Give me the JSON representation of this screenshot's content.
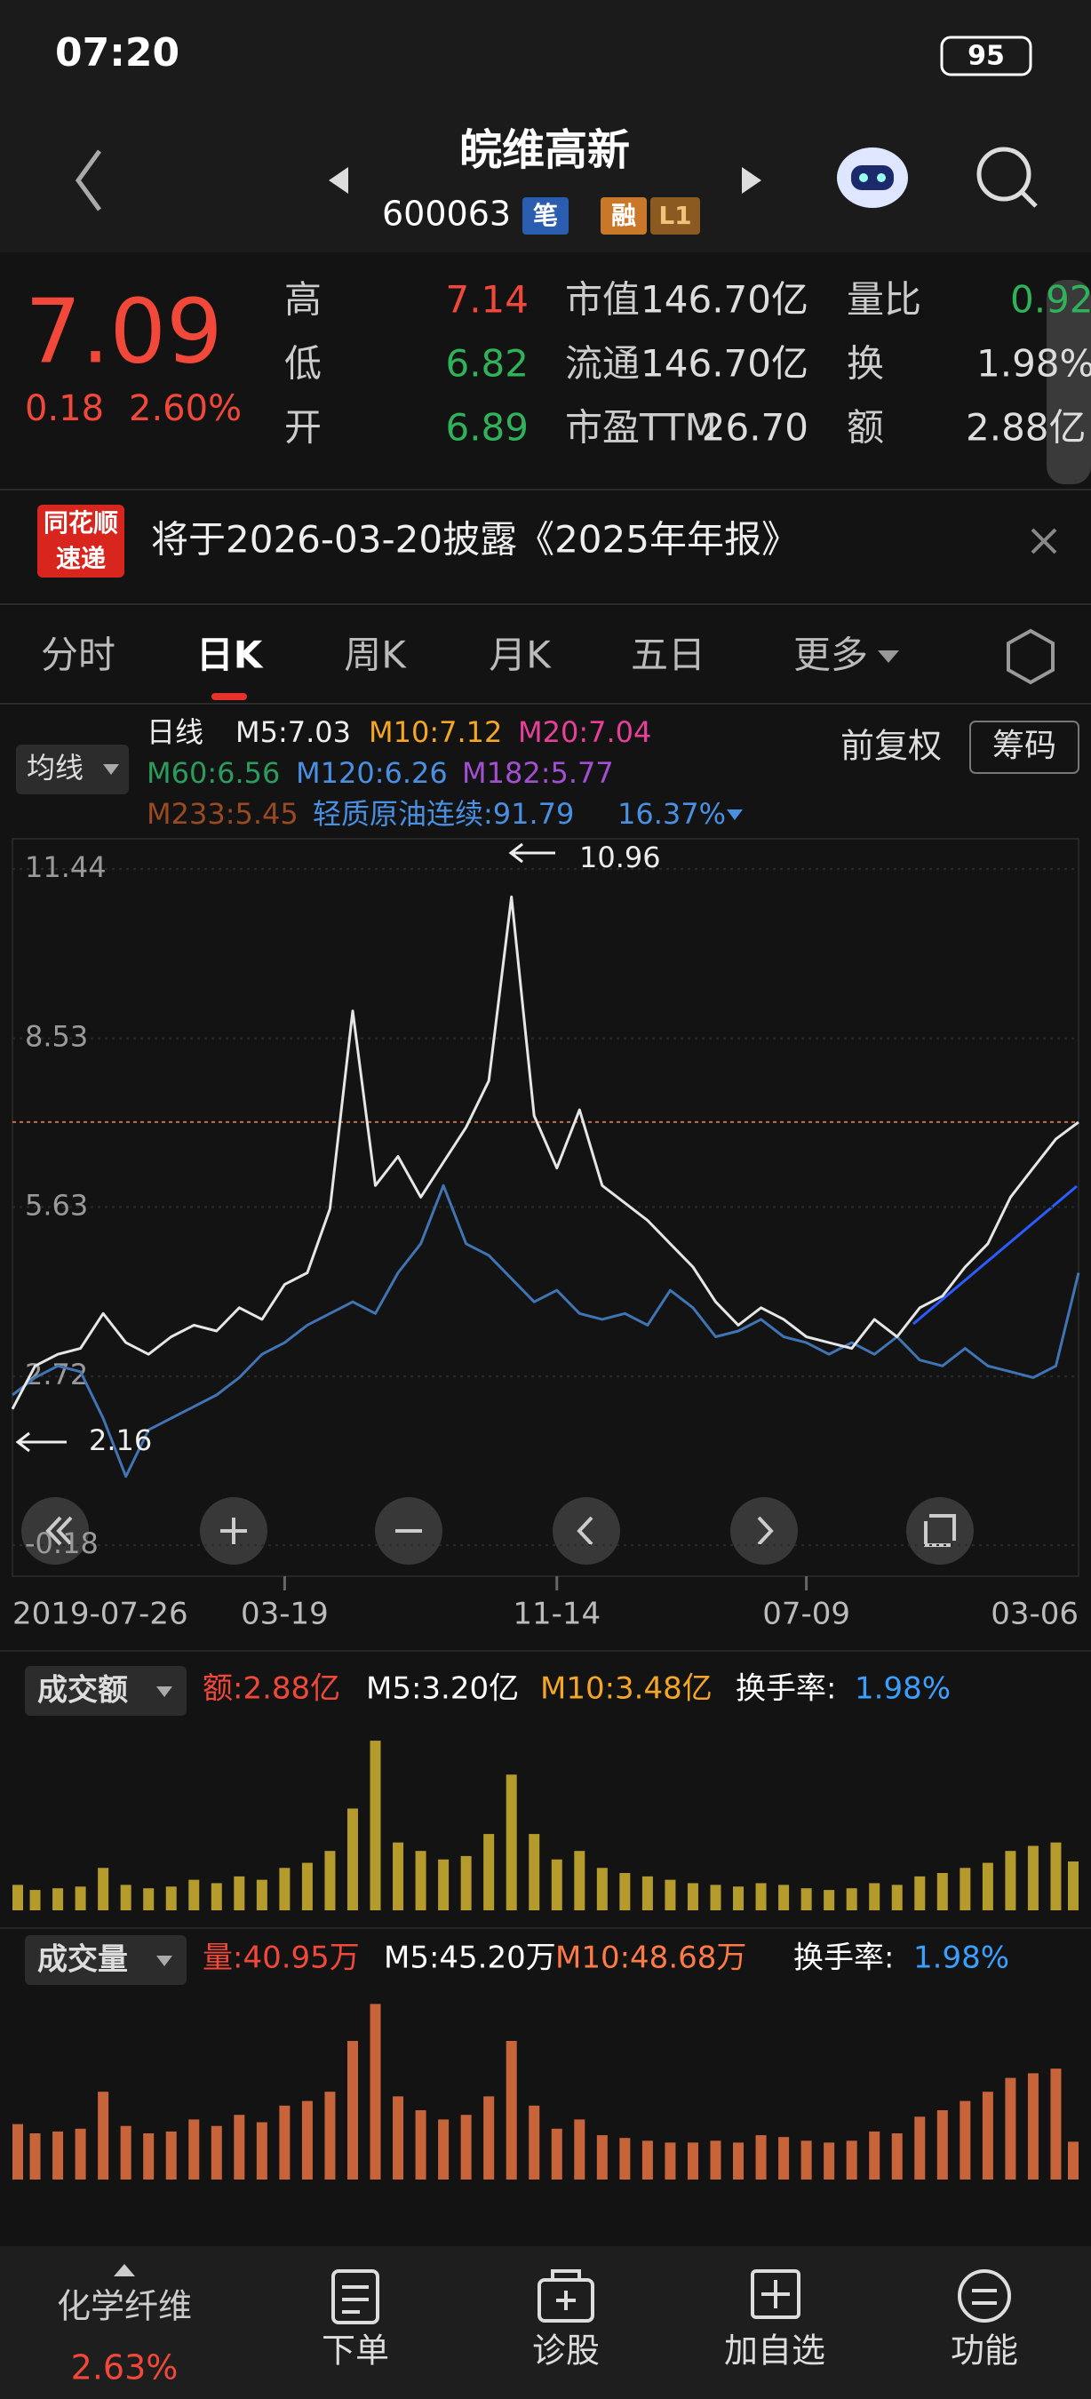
{
  "status": {
    "time": "07:20",
    "battery": "95"
  },
  "header": {
    "title": "皖维高新",
    "code": "600063",
    "badges": [
      "笔",
      "融",
      "L1"
    ]
  },
  "quote": {
    "price": "7.09",
    "change": "0.18",
    "change_pct": "2.60%",
    "fields": [
      [
        "高",
        "7.14"
      ],
      [
        "低",
        "6.82"
      ],
      [
        "开",
        "6.89"
      ],
      [
        "市值",
        "146.70亿"
      ],
      [
        "流通",
        "146.70亿"
      ],
      [
        "市盈TTM",
        "26.70"
      ],
      [
        "量比",
        "0.92"
      ],
      [
        "换",
        "1.98%"
      ],
      [
        "额",
        "2.88亿"
      ]
    ]
  },
  "banner": {
    "logo": [
      "同花顺",
      "速递"
    ],
    "text": "将于2026-03-20披露《2025年年报》"
  },
  "tabs": [
    "分时",
    "日K",
    "周K",
    "月K",
    "五日",
    "更多"
  ],
  "legend": {
    "button": "均线",
    "items": [
      "日线",
      "M5:7.03",
      "M10:7.12",
      "M20:7.04",
      "M60:6.56",
      "M120:6.26",
      "M182:5.77",
      "M233:5.45",
      "轻质原油连续:91.79",
      "16.37%"
    ],
    "adjust": "前复权",
    "chips": "筹码"
  },
  "volume_panels": [
    {
      "button": "成交额",
      "items": [
        "额:2.88亿",
        "M5:3.20亿",
        "M10:3.48亿",
        "换手率:",
        "1.98%"
      ]
    },
    {
      "button": "成交量",
      "items": [
        "量:40.95万",
        "M5:45.20万",
        "M10:48.68万",
        "换手率:",
        "1.98%"
      ]
    }
  ],
  "nav": {
    "sector": "化学纤维",
    "sector_pct": "2.63%",
    "items": [
      "下单",
      "诊股",
      "加自选",
      "功能"
    ]
  },
  "chart_data": [
    {
      "type": "line",
      "categories": [
        "2019-07-26",
        null,
        null,
        null,
        null,
        null,
        null,
        null,
        null,
        null,
        null,
        null,
        "03-19",
        null,
        null,
        null,
        null,
        null,
        null,
        null,
        null,
        null,
        null,
        null,
        "11-14",
        null,
        null,
        null,
        null,
        null,
        null,
        null,
        null,
        null,
        null,
        "07-09",
        null,
        null,
        null,
        null,
        null,
        null,
        null,
        null,
        null,
        null,
        null,
        "03-06"
      ],
      "series": [
        {
          "color": "#e6e6e6",
          "values": [
            2.16,
            2.9,
            3.1,
            3.2,
            3.8,
            3.3,
            3.1,
            3.4,
            3.6,
            3.5,
            3.9,
            3.7,
            4.3,
            4.5,
            5.6,
            9.0,
            6.0,
            6.5,
            5.8,
            6.4,
            7.0,
            7.8,
            10.96,
            7.2,
            6.3,
            7.3,
            6.0,
            5.7,
            5.4,
            5.0,
            4.6,
            4.0,
            3.6,
            3.9,
            3.7,
            3.4,
            3.3,
            3.2,
            3.7,
            3.4,
            3.9,
            4.1,
            4.6,
            5.0,
            5.8,
            6.3,
            6.8,
            7.09
          ]
        },
        {
          "color": "#3f74b5",
          "values": [
            2.4,
            2.7,
            2.9,
            2.8,
            2.0,
            1.0,
            1.8,
            2.0,
            2.2,
            2.4,
            2.7,
            3.1,
            3.3,
            3.6,
            3.8,
            4.0,
            3.8,
            4.5,
            5.0,
            6.0,
            5.0,
            4.8,
            4.4,
            4.0,
            4.2,
            3.8,
            3.7,
            3.8,
            3.6,
            4.2,
            3.9,
            3.4,
            3.5,
            3.7,
            3.4,
            3.3,
            3.1,
            3.3,
            3.1,
            3.4,
            3.0,
            2.9,
            3.2,
            2.9,
            2.8,
            2.7,
            2.9,
            4.5
          ]
        }
      ],
      "ylim": [
        -0.18,
        11.44
      ],
      "yticks": [
        11.44,
        8.53,
        5.63,
        2.72,
        -0.18
      ],
      "grid": true,
      "annotations": [
        "10.96",
        "2.16"
      ]
    },
    {
      "type": "bar",
      "color": "#b59a2c",
      "ylim": [
        0,
        11
      ],
      "values": [
        1.5,
        1.2,
        1.3,
        1.4,
        2.5,
        1.5,
        1.3,
        1.4,
        1.8,
        1.6,
        2.0,
        1.8,
        2.5,
        2.8,
        3.5,
        6.0,
        10.0,
        4.0,
        3.5,
        3.0,
        3.2,
        4.5,
        8.0,
        4.5,
        3.0,
        3.5,
        2.5,
        2.2,
        2.0,
        1.8,
        1.6,
        1.5,
        1.4,
        1.6,
        1.5,
        1.3,
        1.2,
        1.3,
        1.6,
        1.5,
        2.0,
        2.2,
        2.5,
        2.8,
        3.5,
        3.8,
        4.0,
        2.88
      ]
    },
    {
      "type": "bar",
      "color": "#c8643a",
      "ylim": [
        0,
        200
      ],
      "values": [
        60,
        50,
        52,
        55,
        95,
        58,
        50,
        52,
        65,
        58,
        70,
        62,
        80,
        85,
        95,
        150,
        190,
        90,
        75,
        65,
        70,
        90,
        150,
        80,
        55,
        65,
        48,
        45,
        42,
        40,
        40,
        42,
        40,
        48,
        46,
        42,
        40,
        42,
        52,
        50,
        68,
        75,
        85,
        95,
        110,
        115,
        120,
        40.95
      ]
    }
  ]
}
